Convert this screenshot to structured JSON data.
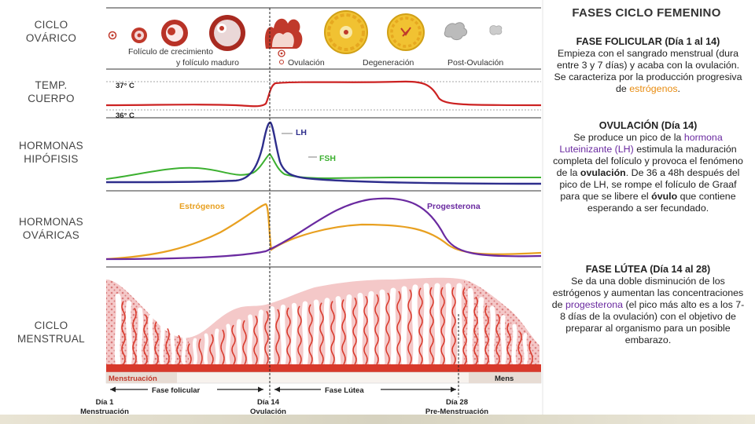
{
  "labels": {
    "ovarian_cycle": [
      "CICLO",
      "OVÁRICO"
    ],
    "body_temp": [
      "TEMP.",
      "CUERPO"
    ],
    "pituitary": [
      "HORMONAS",
      "HIPÓFISIS"
    ],
    "ovarian_hormones": [
      "HORMONAS",
      "OVÁRICAS"
    ],
    "menstrual_cycle": [
      "CICLO",
      "MENSTRUAL"
    ]
  },
  "ovary_stages": {
    "follicle": [
      "Folículo de crecimiento",
      "y folículo maduro"
    ],
    "ovulation": "Ovulación",
    "degeneration": "Degeneración",
    "post_ovulation": "Post-Ovulación"
  },
  "temperature": {
    "high": "37° C",
    "low": "36° C"
  },
  "hormone_labels": {
    "lh": "LH",
    "fsh": "FSH",
    "estrogens": "Estrógenos",
    "progesterone": "Progesterona"
  },
  "menstrual": {
    "menstruation": "Menstruación",
    "mens": "Mens",
    "follicular_phase": "Fase folicular",
    "luteal_phase": "Fase Lútea"
  },
  "days": {
    "d1": [
      "Día 1",
      "Menstruación"
    ],
    "d14": [
      "Día 14",
      "Ovulación"
    ],
    "d28": [
      "Día 28",
      "Pre-Menstruación"
    ]
  },
  "panel": {
    "title": "FASES CICLO FEMENINO",
    "follicular": {
      "heading": "FASE FOLICULAR (Día 1 al 14)",
      "text1": "Empieza con el sangrado menstrual (dura entre 3 y 7 días) y acaba con la ovulación. Se caracteriza por la producción progresiva de ",
      "highlight": "estrógenos",
      "text2": "."
    },
    "ovulation": {
      "heading": "OVULACIÓN (Día 14)",
      "text1": "Se produce un pico de la ",
      "highlight": "hormona Luteinizante (LH)",
      "text2": " estimula la maduración completa del folículo y provoca el fenómeno de la ",
      "bold1": "ovulación",
      "text3": ". De 36 a 48h después del pico de LH, se rompe el folículo de Graaf para que se libere el ",
      "bold2": "óvulo",
      "text4": " que contiene esperando a ser fecundado."
    },
    "luteal": {
      "heading": "FASE LÚTEA (Día 14 al 28)",
      "text1": "Se da una doble disminución de los estrógenos y aumentan las concentraciones de ",
      "highlight": "progesterona",
      "text2": " (el pico más alto es a los 7-8 días de la ovulación) con el objetivo de preparar al organismo para un posible embarazo."
    }
  },
  "colors": {
    "lh": "#2e2e8c",
    "fsh": "#3cb030",
    "estrogen": "#e8a020",
    "progesterone": "#6a2aa0",
    "temperature": "#cc2222",
    "endometrium": "#f4c8c8",
    "vessel": "#d8392b"
  }
}
